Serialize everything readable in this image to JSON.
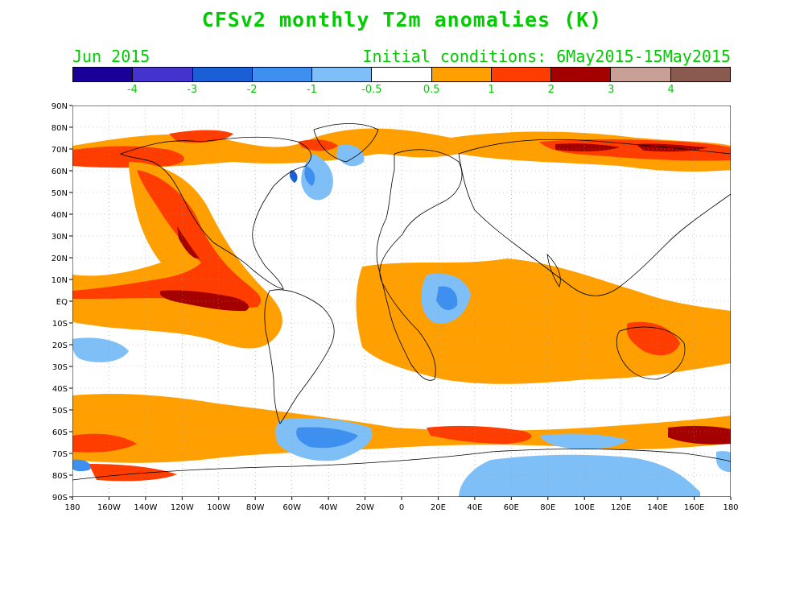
{
  "title": "CFSv2 monthly T2m anomalies (K)",
  "month_label": "Jun 2015",
  "initial_conditions": "Initial conditions: 6May2015-15May2015",
  "colorbar": {
    "colors": [
      "#1a0099",
      "#4433cc",
      "#1a5fd6",
      "#3d8ff0",
      "#7fbff8",
      "#ffffff",
      "#ff9f00",
      "#ff3d00",
      "#a50000",
      "#c8a096",
      "#8a5a50"
    ],
    "labels": [
      "-4",
      "-3",
      "-2",
      "-1",
      "-0.5",
      "0.5",
      "1",
      "2",
      "3",
      "4"
    ]
  },
  "lat_labels": [
    "90N",
    "80N",
    "70N",
    "60N",
    "50N",
    "40N",
    "30N",
    "20N",
    "10N",
    "EQ",
    "10S",
    "20S",
    "30S",
    "40S",
    "50S",
    "60S",
    "70S",
    "80S",
    "90S"
  ],
  "lon_labels": [
    "180",
    "160W",
    "140W",
    "120W",
    "100W",
    "80W",
    "60W",
    "40W",
    "20W",
    "0",
    "20E",
    "40E",
    "60E",
    "80E",
    "100E",
    "120E",
    "140E",
    "160E",
    "180"
  ]
}
